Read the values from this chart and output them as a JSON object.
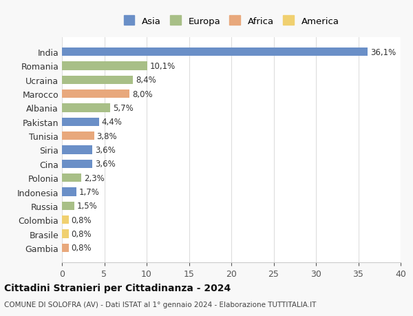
{
  "countries": [
    "India",
    "Romania",
    "Ucraina",
    "Marocco",
    "Albania",
    "Pakistan",
    "Tunisia",
    "Siria",
    "Cina",
    "Polonia",
    "Indonesia",
    "Russia",
    "Colombia",
    "Brasile",
    "Gambia"
  ],
  "values": [
    36.1,
    10.1,
    8.4,
    8.0,
    5.7,
    4.4,
    3.8,
    3.6,
    3.6,
    2.3,
    1.7,
    1.5,
    0.8,
    0.8,
    0.8
  ],
  "labels": [
    "36,1%",
    "10,1%",
    "8,4%",
    "8,0%",
    "5,7%",
    "4,4%",
    "3,8%",
    "3,6%",
    "3,6%",
    "2,3%",
    "1,7%",
    "1,5%",
    "0,8%",
    "0,8%",
    "0,8%"
  ],
  "continent": [
    "Asia",
    "Europa",
    "Europa",
    "Africa",
    "Europa",
    "Asia",
    "Africa",
    "Asia",
    "Asia",
    "Europa",
    "Asia",
    "Europa",
    "America",
    "America",
    "Africa"
  ],
  "colors": {
    "Asia": "#6a8fc7",
    "Europa": "#a8bf87",
    "Africa": "#e8a87c",
    "America": "#f0d070"
  },
  "legend_order": [
    "Asia",
    "Europa",
    "Africa",
    "America"
  ],
  "xlim": [
    0,
    40
  ],
  "xticks": [
    0,
    5,
    10,
    15,
    20,
    25,
    30,
    35,
    40
  ],
  "title": "Cittadini Stranieri per Cittadinanza - 2024",
  "subtitle": "COMUNE DI SOLOFRA (AV) - Dati ISTAT al 1° gennaio 2024 - Elaborazione TUTTITALIA.IT",
  "background_color": "#f8f8f8",
  "plot_bg_color": "#ffffff",
  "grid_color": "#dddddd"
}
